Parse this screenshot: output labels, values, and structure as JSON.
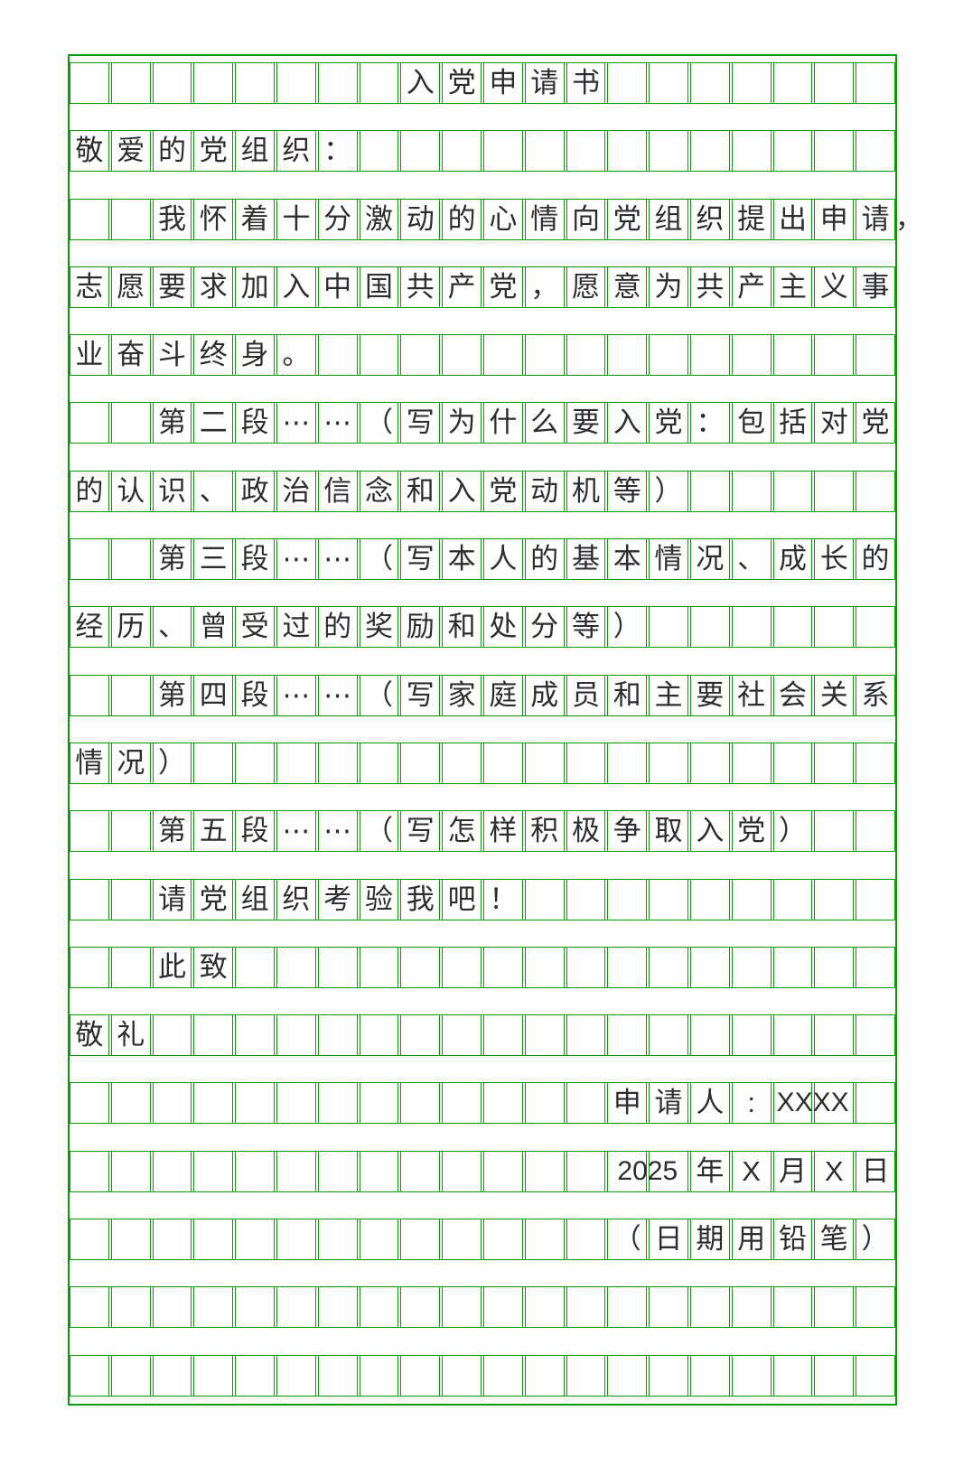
{
  "document": {
    "kind": "grid-manuscript-paper",
    "title": "入党申请书",
    "grid": {
      "columns": 20,
      "visible_rows": 20,
      "line_color": "#0a9a0a",
      "text_color": "#2d2d2d",
      "background_color": "#ffffff"
    },
    "rows": [
      [
        "",
        "",
        "",
        "",
        "",
        "",
        "",
        "",
        "入",
        "党",
        "申",
        "请",
        "书",
        "",
        "",
        "",
        "",
        "",
        "",
        ""
      ],
      [
        "敬",
        "爱",
        "的",
        "党",
        "组",
        "织",
        "：",
        "",
        "",
        "",
        "",
        "",
        "",
        "",
        "",
        "",
        "",
        "",
        "",
        ""
      ],
      [
        "",
        "",
        "我",
        "怀",
        "着",
        "十",
        "分",
        "激",
        "动",
        "的",
        "心",
        "情",
        "向",
        "党",
        "组",
        "织",
        "提",
        "出",
        "申",
        "请"
      ],
      [
        "志",
        "愿",
        "要",
        "求",
        "加",
        "入",
        "中",
        "国",
        "共",
        "产",
        "党",
        "，",
        "愿",
        "意",
        "为",
        "共",
        "产",
        "主",
        "义",
        "事"
      ],
      [
        "业",
        "奋",
        "斗",
        "终",
        "身",
        "。",
        "",
        "",
        "",
        "",
        "",
        "",
        "",
        "",
        "",
        "",
        "",
        "",
        "",
        ""
      ],
      [
        "",
        "",
        "第",
        "二",
        "段",
        "⋯",
        "⋯",
        "（",
        "写",
        "为",
        "什",
        "么",
        "要",
        "入",
        "党",
        "：",
        "包",
        "括",
        "对",
        "党"
      ],
      [
        "的",
        "认",
        "识",
        "、",
        "政",
        "治",
        "信",
        "念",
        "和",
        "入",
        "党",
        "动",
        "机",
        "等",
        "）",
        "",
        "",
        "",
        "",
        ""
      ],
      [
        "",
        "",
        "第",
        "三",
        "段",
        "⋯",
        "⋯",
        "（",
        "写",
        "本",
        "人",
        "的",
        "基",
        "本",
        "情",
        "况",
        "、",
        "成",
        "长",
        "的"
      ],
      [
        "经",
        "历",
        "、",
        "曾",
        "受",
        "过",
        "的",
        "奖",
        "励",
        "和",
        "处",
        "分",
        "等",
        "）",
        "",
        "",
        "",
        "",
        "",
        ""
      ],
      [
        "",
        "",
        "第",
        "四",
        "段",
        "⋯",
        "⋯",
        "（",
        "写",
        "家",
        "庭",
        "成",
        "员",
        "和",
        "主",
        "要",
        "社",
        "会",
        "关",
        "系"
      ],
      [
        "情",
        "况",
        "）",
        "",
        "",
        "",
        "",
        "",
        "",
        "",
        "",
        "",
        "",
        "",
        "",
        "",
        "",
        "",
        "",
        ""
      ],
      [
        "",
        "",
        "第",
        "五",
        "段",
        "⋯",
        "⋯",
        "（",
        "写",
        "怎",
        "样",
        "积",
        "极",
        "争",
        "取",
        "入",
        "党",
        "）",
        "",
        ""
      ],
      [
        "",
        "",
        "请",
        "党",
        "组",
        "织",
        "考",
        "验",
        "我",
        "吧",
        "！",
        "",
        "",
        "",
        "",
        "",
        "",
        "",
        "",
        ""
      ],
      [
        "",
        "",
        "此",
        "致",
        "",
        "",
        "",
        "",
        "",
        "",
        "",
        "",
        "",
        "",
        "",
        "",
        "",
        "",
        "",
        ""
      ],
      [
        "敬",
        "礼",
        "",
        "",
        "",
        "",
        "",
        "",
        "",
        "",
        "",
        "",
        "",
        "",
        "",
        "",
        "",
        "",
        "",
        ""
      ],
      [
        "",
        "",
        "",
        "",
        "",
        "",
        "",
        "",
        "",
        "",
        "",
        "",
        "",
        "申",
        "请",
        "人",
        ":",
        "",
        "",
        ""
      ],
      [
        "",
        "",
        "",
        "",
        "",
        "",
        "",
        "",
        "",
        "",
        "",
        "",
        "",
        "",
        "",
        "年",
        "X",
        "月",
        "X",
        "日"
      ],
      [
        "",
        "",
        "",
        "",
        "",
        "",
        "",
        "",
        "",
        "",
        "",
        "",
        "",
        "（",
        "日",
        "期",
        "用",
        "铅",
        "笔",
        "）"
      ],
      [
        "",
        "",
        "",
        "",
        "",
        "",
        "",
        "",
        "",
        "",
        "",
        "",
        "",
        "",
        "",
        "",
        "",
        "",
        "",
        ""
      ],
      [
        "",
        "",
        "",
        "",
        "",
        "",
        "",
        "",
        "",
        "",
        "",
        "",
        "",
        "",
        "",
        "",
        "",
        "",
        "",
        ""
      ]
    ],
    "overlays": [
      {
        "name": "hanging-comma",
        "row": 2,
        "col": 20,
        "span": 0.7,
        "align": "left",
        "text": "，"
      },
      {
        "name": "applicant-name-value",
        "row": 15,
        "col": 17,
        "span": 2,
        "text": "XXXX"
      },
      {
        "name": "year-value",
        "row": 16,
        "col": 13,
        "span": 2,
        "text": "2025"
      }
    ]
  }
}
